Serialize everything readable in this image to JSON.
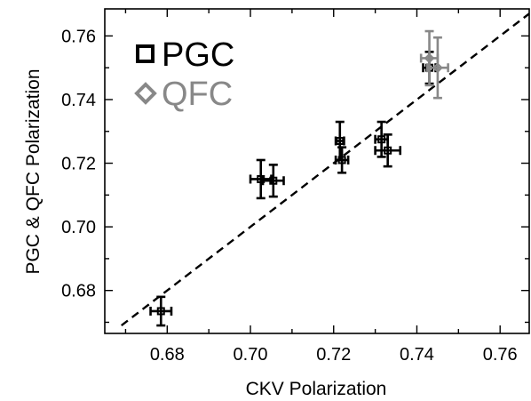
{
  "chart_data": {
    "type": "scatter",
    "xlabel": "CKV Polarization",
    "ylabel": "PGC & QFC Polarization",
    "xlim": [
      0.665,
      0.767
    ],
    "ylim": [
      0.6665,
      0.7685
    ],
    "x_ticks": [
      0.68,
      0.7,
      0.72,
      0.74,
      0.76
    ],
    "x_tick_labels": [
      "0.68",
      "0.70",
      "0.72",
      "0.74",
      "0.76"
    ],
    "y_ticks": [
      0.68,
      0.7,
      0.72,
      0.74,
      0.76
    ],
    "y_tick_labels": [
      "0.68",
      "0.70",
      "0.72",
      "0.74",
      "0.76"
    ],
    "grid": false,
    "legend_position": "top-left",
    "series": [
      {
        "name": "PGC",
        "marker": "square",
        "color": "#000000",
        "points": [
          {
            "x": 0.6785,
            "y": 0.6735,
            "xerr": 0.0025,
            "yerr": 0.0045
          },
          {
            "x": 0.7025,
            "y": 0.715,
            "xerr": 0.0025,
            "yerr": 0.006
          },
          {
            "x": 0.7055,
            "y": 0.7145,
            "xerr": 0.0025,
            "yerr": 0.005
          },
          {
            "x": 0.7215,
            "y": 0.727,
            "xerr": 0.001,
            "yerr": 0.006
          },
          {
            "x": 0.722,
            "y": 0.721,
            "xerr": 0.0015,
            "yerr": 0.004
          },
          {
            "x": 0.7315,
            "y": 0.7275,
            "xerr": 0.0015,
            "yerr": 0.0055
          },
          {
            "x": 0.733,
            "y": 0.724,
            "xerr": 0.003,
            "yerr": 0.005
          },
          {
            "x": 0.743,
            "y": 0.75,
            "xerr": 0.0015,
            "yerr": 0.005
          }
        ]
      },
      {
        "name": "QFC",
        "marker": "diamond",
        "color": "#888888",
        "points": [
          {
            "x": 0.743,
            "y": 0.753,
            "xerr": 0.002,
            "yerr": 0.0085
          },
          {
            "x": 0.745,
            "y": 0.75,
            "xerr": 0.0025,
            "yerr": 0.0095
          }
        ]
      }
    ],
    "reference_line": {
      "style": "dashed",
      "color": "#000000",
      "x": [
        0.669,
        0.767
      ],
      "y": [
        0.669,
        0.767
      ]
    }
  }
}
